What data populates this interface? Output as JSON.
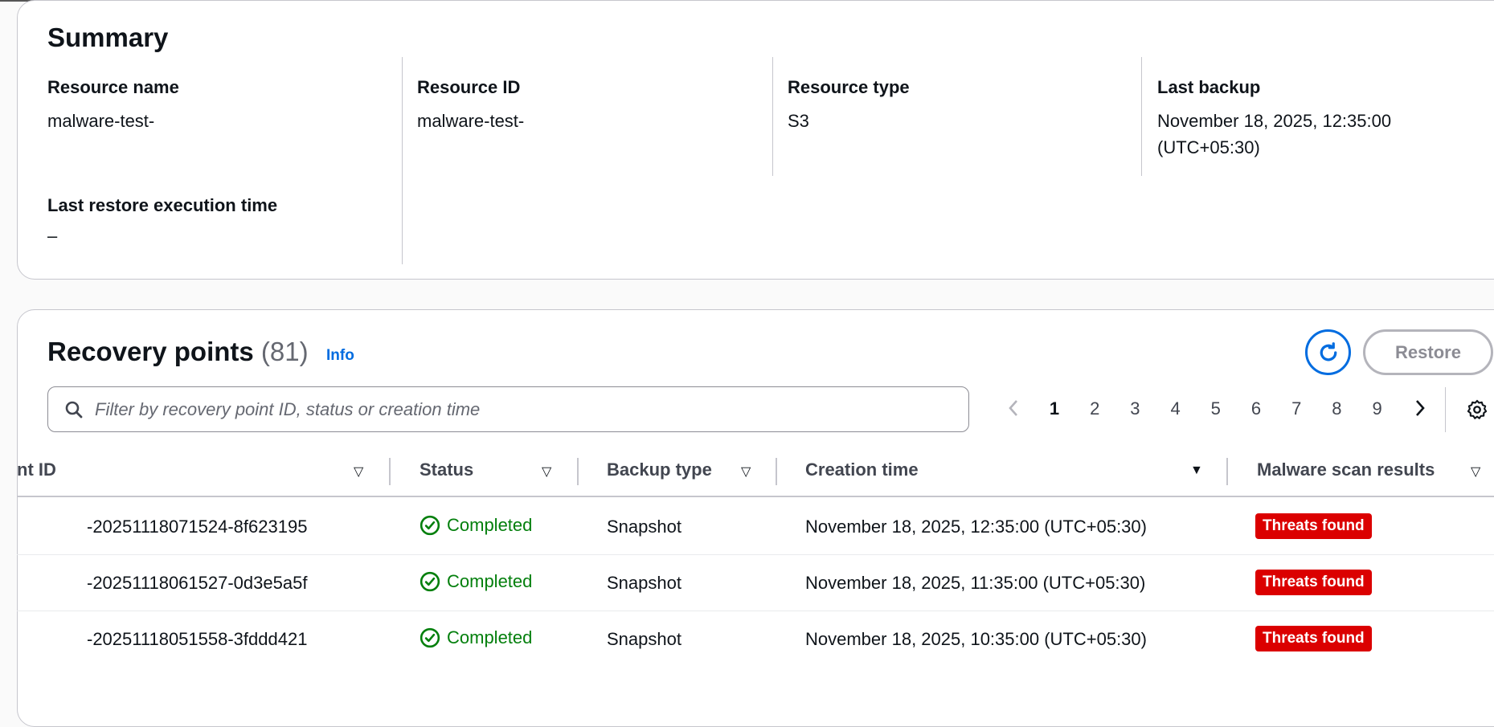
{
  "summary": {
    "title": "Summary",
    "fields": [
      {
        "label": "Resource name",
        "value": "malware-test-"
      },
      {
        "label": "Resource ID",
        "value": "malware-test-"
      },
      {
        "label": "Resource type",
        "value": "S3"
      },
      {
        "label": "Last backup",
        "value": "November 18, 2025, 12:35:00 (UTC+05:30)"
      },
      {
        "label": "Last restore execution time",
        "value": "–"
      }
    ]
  },
  "recovery_points": {
    "title": "Recovery points",
    "count": "(81)",
    "info_label": "Info",
    "restore_label": "Restore",
    "search_placeholder": "Filter by recovery point ID, status or creation time",
    "pages": [
      "1",
      "2",
      "3",
      "4",
      "5",
      "6",
      "7",
      "8",
      "9"
    ],
    "current_page": "1",
    "columns": [
      "nt ID",
      "Status",
      "Backup type",
      "Creation time",
      "Malware scan results"
    ],
    "rows": [
      {
        "id": "-20251118071524-8f623195",
        "status": "Completed",
        "type": "Snapshot",
        "created": "November 18, 2025, 12:35:00 (UTC+05:30)",
        "scan": "Threats found"
      },
      {
        "id": "-20251118061527-0d3e5a5f",
        "status": "Completed",
        "type": "Snapshot",
        "created": "November 18, 2025, 11:35:00 (UTC+05:30)",
        "scan": "Threats found"
      },
      {
        "id": "-20251118051558-3fddd421",
        "status": "Completed",
        "type": "Snapshot",
        "created": "November 18, 2025, 10:35:00 (UTC+05:30)",
        "scan": "Threats found"
      }
    ]
  },
  "colors": {
    "accent": "#006ce0",
    "success": "#037f0c",
    "danger": "#db0000"
  }
}
